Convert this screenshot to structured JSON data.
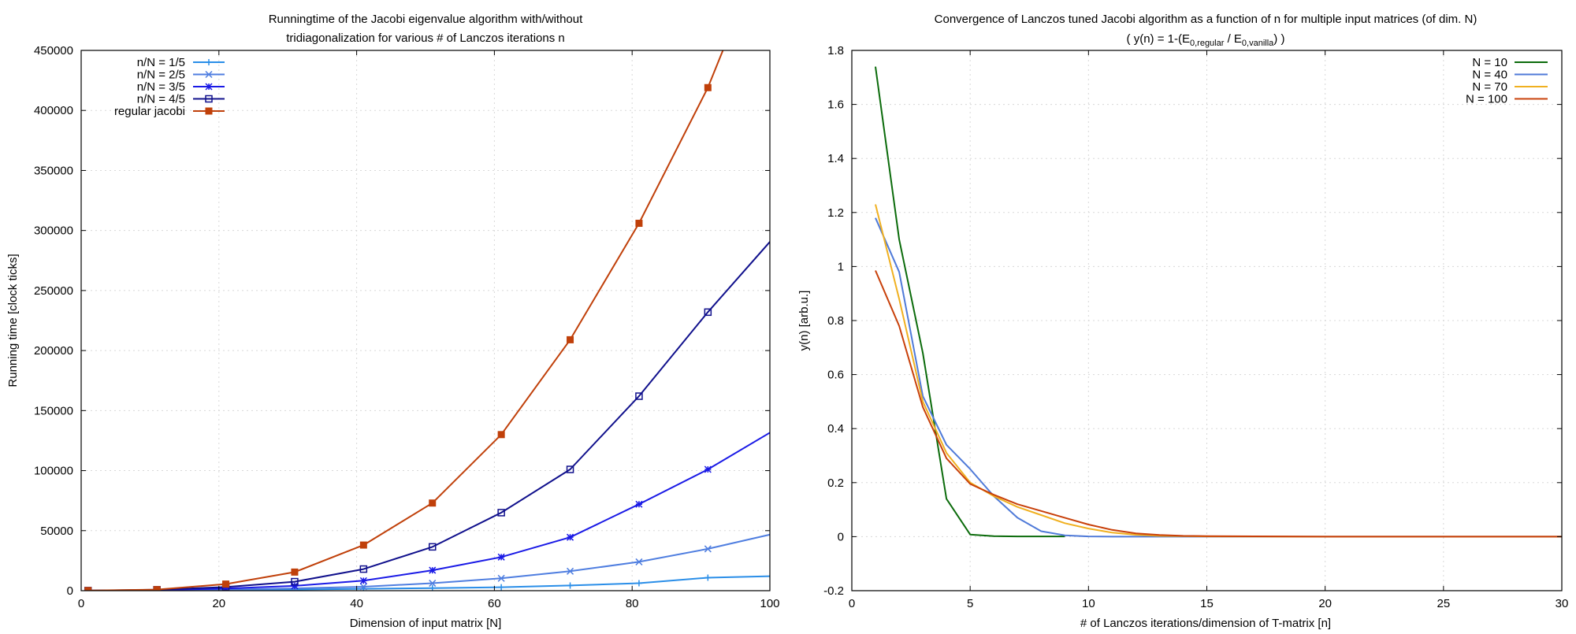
{
  "chart_data": [
    {
      "type": "line",
      "title_lines": [
        "Runningtime of the Jacobi eigenvalue algorithm with/without",
        "tridiagonalization for various # of Lanczos iterations n"
      ],
      "xlabel": "Dimension of input matrix [N]",
      "ylabel": "Running time [clock ticks]",
      "xlim": [
        0,
        100
      ],
      "ylim": [
        0,
        450000
      ],
      "xticks": [
        0,
        20,
        40,
        60,
        80,
        100
      ],
      "yticks": [
        0,
        50000,
        100000,
        150000,
        200000,
        250000,
        300000,
        350000,
        400000,
        450000
      ],
      "grid": true,
      "legend": "top-left",
      "series": [
        {
          "name": "n/N = 1/5",
          "color": "#2a8ee8",
          "marker": "plus",
          "x": [
            1,
            11,
            21,
            31,
            41,
            51,
            61,
            71,
            81,
            91,
            101
          ],
          "y": [
            10,
            120,
            400,
            900,
            1600,
            2100,
            2900,
            4300,
            6200,
            10800,
            12200
          ]
        },
        {
          "name": "n/N = 2/5",
          "color": "#4f7ee0",
          "marker": "cross",
          "x": [
            1,
            11,
            21,
            31,
            41,
            51,
            61,
            71,
            81,
            91,
            101
          ],
          "y": [
            30,
            250,
            900,
            1900,
            3300,
            6200,
            10300,
            16200,
            24000,
            34800,
            48000
          ]
        },
        {
          "name": "n/N = 3/5",
          "color": "#1a1ae6",
          "marker": "star",
          "x": [
            1,
            11,
            21,
            31,
            41,
            51,
            61,
            71,
            81,
            91,
            101
          ],
          "y": [
            50,
            500,
            1800,
            4000,
            8300,
            17000,
            28000,
            44500,
            72000,
            101000,
            135000
          ]
        },
        {
          "name": "n/N = 4/5",
          "color": "#10108c",
          "marker": "open-square",
          "x": [
            1,
            11,
            21,
            31,
            41,
            51,
            61,
            71,
            81,
            91,
            101
          ],
          "y": [
            80,
            800,
            3000,
            7500,
            18000,
            36500,
            65000,
            101000,
            162000,
            232000,
            297000
          ]
        },
        {
          "name": "regular jacobi",
          "color": "#c0400a",
          "marker": "filled-square",
          "x": [
            1,
            11,
            21,
            31,
            41,
            51,
            61,
            71,
            81,
            91,
            96
          ],
          "y": [
            150,
            900,
            5500,
            15500,
            38000,
            73000,
            130000,
            209000,
            306000,
            419000,
            490000
          ]
        }
      ]
    },
    {
      "type": "line",
      "title_line1": "Convergence of Lanczos tuned Jacobi algorithm as a function of n for multiple input matrices (of dim. N)",
      "title_line2": {
        "part1": "( y(n) = 1-(E",
        "sub1": "0,regular",
        "part2": " / E",
        "sub2": "0,vanilla",
        "part3": ") )"
      },
      "xlabel": "# of Lanczos iterations/dimension of T-matrix [n]",
      "ylabel": "y(n) [arb.u.]",
      "xlim": [
        0,
        30
      ],
      "ylim": [
        -0.2,
        1.8
      ],
      "xticks": [
        0,
        5,
        10,
        15,
        20,
        25,
        30
      ],
      "yticks": [
        -0.2,
        0,
        0.2,
        0.4,
        0.6,
        0.8,
        1,
        1.2,
        1.4,
        1.6,
        1.8
      ],
      "grid": true,
      "legend": "top-right",
      "series": [
        {
          "name": "N = 10",
          "color": "#0b6b0b",
          "x": [
            1,
            2,
            3,
            4,
            5,
            6,
            7,
            8,
            9
          ],
          "y": [
            1.74,
            1.1,
            0.68,
            0.14,
            0.008,
            0.002,
            0.001,
            0.001,
            0.001
          ]
        },
        {
          "name": "N = 40",
          "color": "#4f7ad8",
          "x": [
            1,
            2,
            3,
            4,
            5,
            6,
            7,
            8,
            9,
            10,
            11,
            12,
            13,
            14,
            15,
            20,
            25,
            30
          ],
          "y": [
            1.18,
            0.98,
            0.52,
            0.34,
            0.25,
            0.15,
            0.07,
            0.02,
            0.005,
            0.001,
            0.0,
            0.0,
            0.0,
            0.0,
            0.0,
            0.0,
            0.0,
            0.0
          ]
        },
        {
          "name": "N = 70",
          "color": "#f0b020",
          "x": [
            1,
            2,
            3,
            4,
            5,
            6,
            7,
            8,
            9,
            10,
            11,
            12,
            13,
            14,
            15,
            20,
            25,
            30
          ],
          "y": [
            1.23,
            0.88,
            0.5,
            0.31,
            0.2,
            0.15,
            0.11,
            0.08,
            0.05,
            0.03,
            0.015,
            0.007,
            0.003,
            0.002,
            0.001,
            0.0,
            0.0,
            0.0
          ]
        },
        {
          "name": "N = 100",
          "color": "#c8400a",
          "x": [
            1,
            2,
            3,
            4,
            5,
            6,
            7,
            8,
            9,
            10,
            11,
            12,
            13,
            14,
            15,
            20,
            25,
            30
          ],
          "y": [
            0.985,
            0.78,
            0.48,
            0.29,
            0.195,
            0.155,
            0.12,
            0.095,
            0.07,
            0.045,
            0.025,
            0.012,
            0.006,
            0.003,
            0.002,
            0.0,
            0.0,
            0.0
          ]
        }
      ]
    }
  ]
}
